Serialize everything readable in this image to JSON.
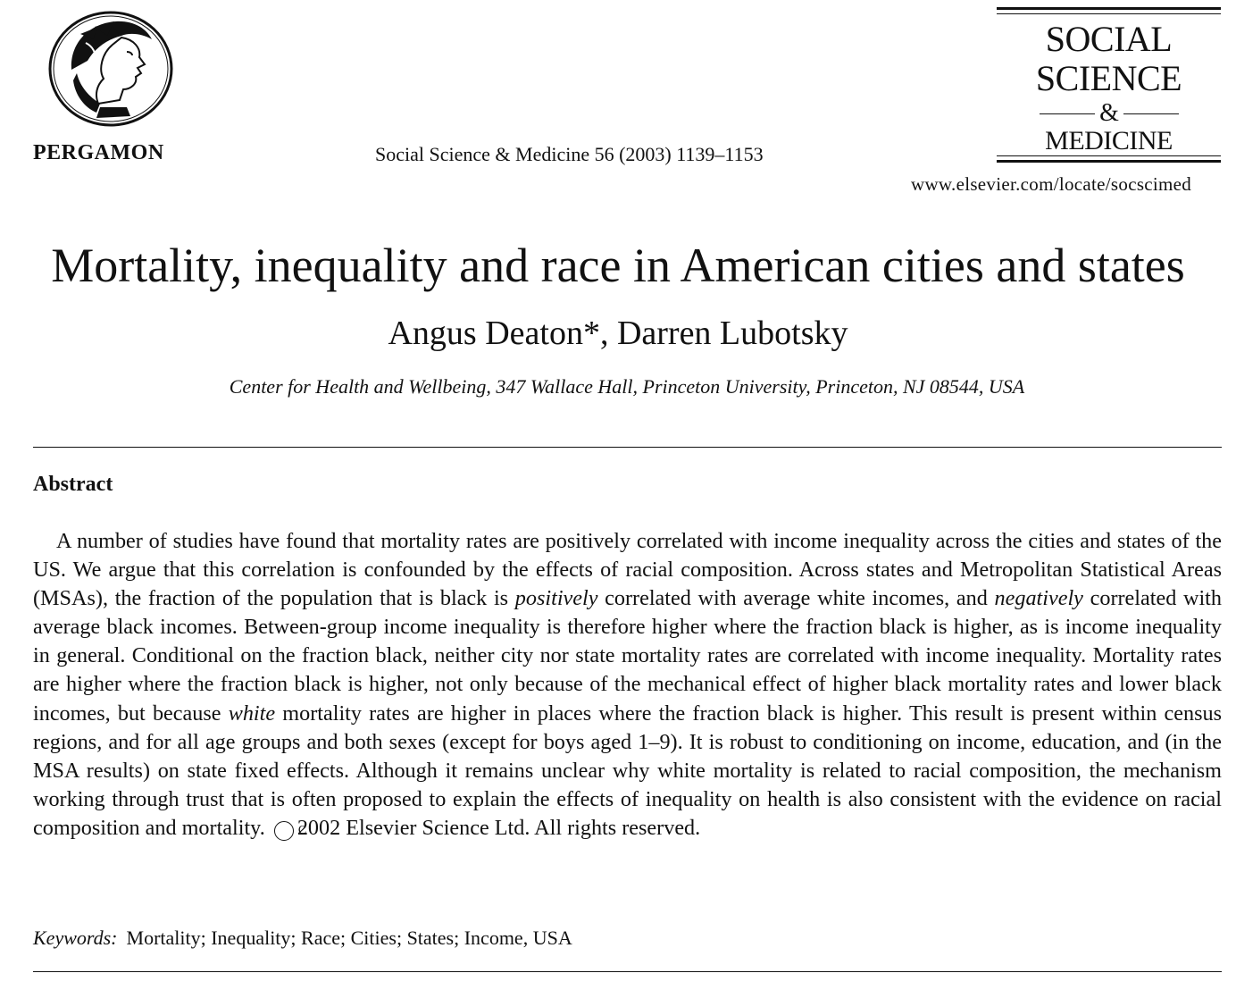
{
  "header": {
    "publisher_logo_icon": "pergamon-helmeted-head-emblem",
    "publisher_name": "PERGAMON",
    "citation": "Social Science & Medicine 56 (2003) 1139–1153",
    "masthead": {
      "line1": "SOCIAL",
      "line2": "SCIENCE",
      "ampersand": "&",
      "line3": "MEDICINE"
    },
    "url": "www.elsevier.com/locate/socscimed"
  },
  "article": {
    "title": "Mortality, inequality and race in American cities and states",
    "authors": "Angus Deaton*, Darren Lubotsky",
    "affiliation": "Center for Health and Wellbeing, 347 Wallace Hall, Princeton University, Princeton, NJ 08544, USA"
  },
  "abstract": {
    "heading": "Abstract",
    "segments": [
      "A number of studies have found that mortality rates are positively correlated with income inequality across the cities and states of the US. We argue that this correlation is confounded by the effects of racial composition. Across states and Metropolitan Statistical Areas (MSAs), the fraction of the population that is black is ",
      "positively",
      " correlated with average white incomes, and ",
      "negatively",
      " correlated with average black incomes. Between-group income inequality is therefore higher where the fraction black is higher, as is income inequality in general. Conditional on the fraction black, neither city nor state mortality rates are correlated with income inequality. Mortality rates are higher where the fraction black is higher, not only because of the mechanical effect of higher black mortality rates and lower black incomes, but because ",
      "white",
      " mortality rates are higher in places where the fraction black is higher. This result is present within census regions, and for all age groups and both sexes (except for boys aged 1–9). It is robust to conditioning on income, education, and (in the MSA results) on state fixed effects. Although it remains unclear why white mortality is related to racial composition, the mechanism working through trust that is often proposed to explain the effects of inequality on health is also consistent with the evidence on racial composition and mortality. ",
      "2002 Elsevier Science Ltd. All rights reserved."
    ],
    "copyright_symbol": "C"
  },
  "keywords": {
    "label": "Keywords:",
    "list": "Mortality; Inequality; Race; Cities; States; Income, USA"
  }
}
